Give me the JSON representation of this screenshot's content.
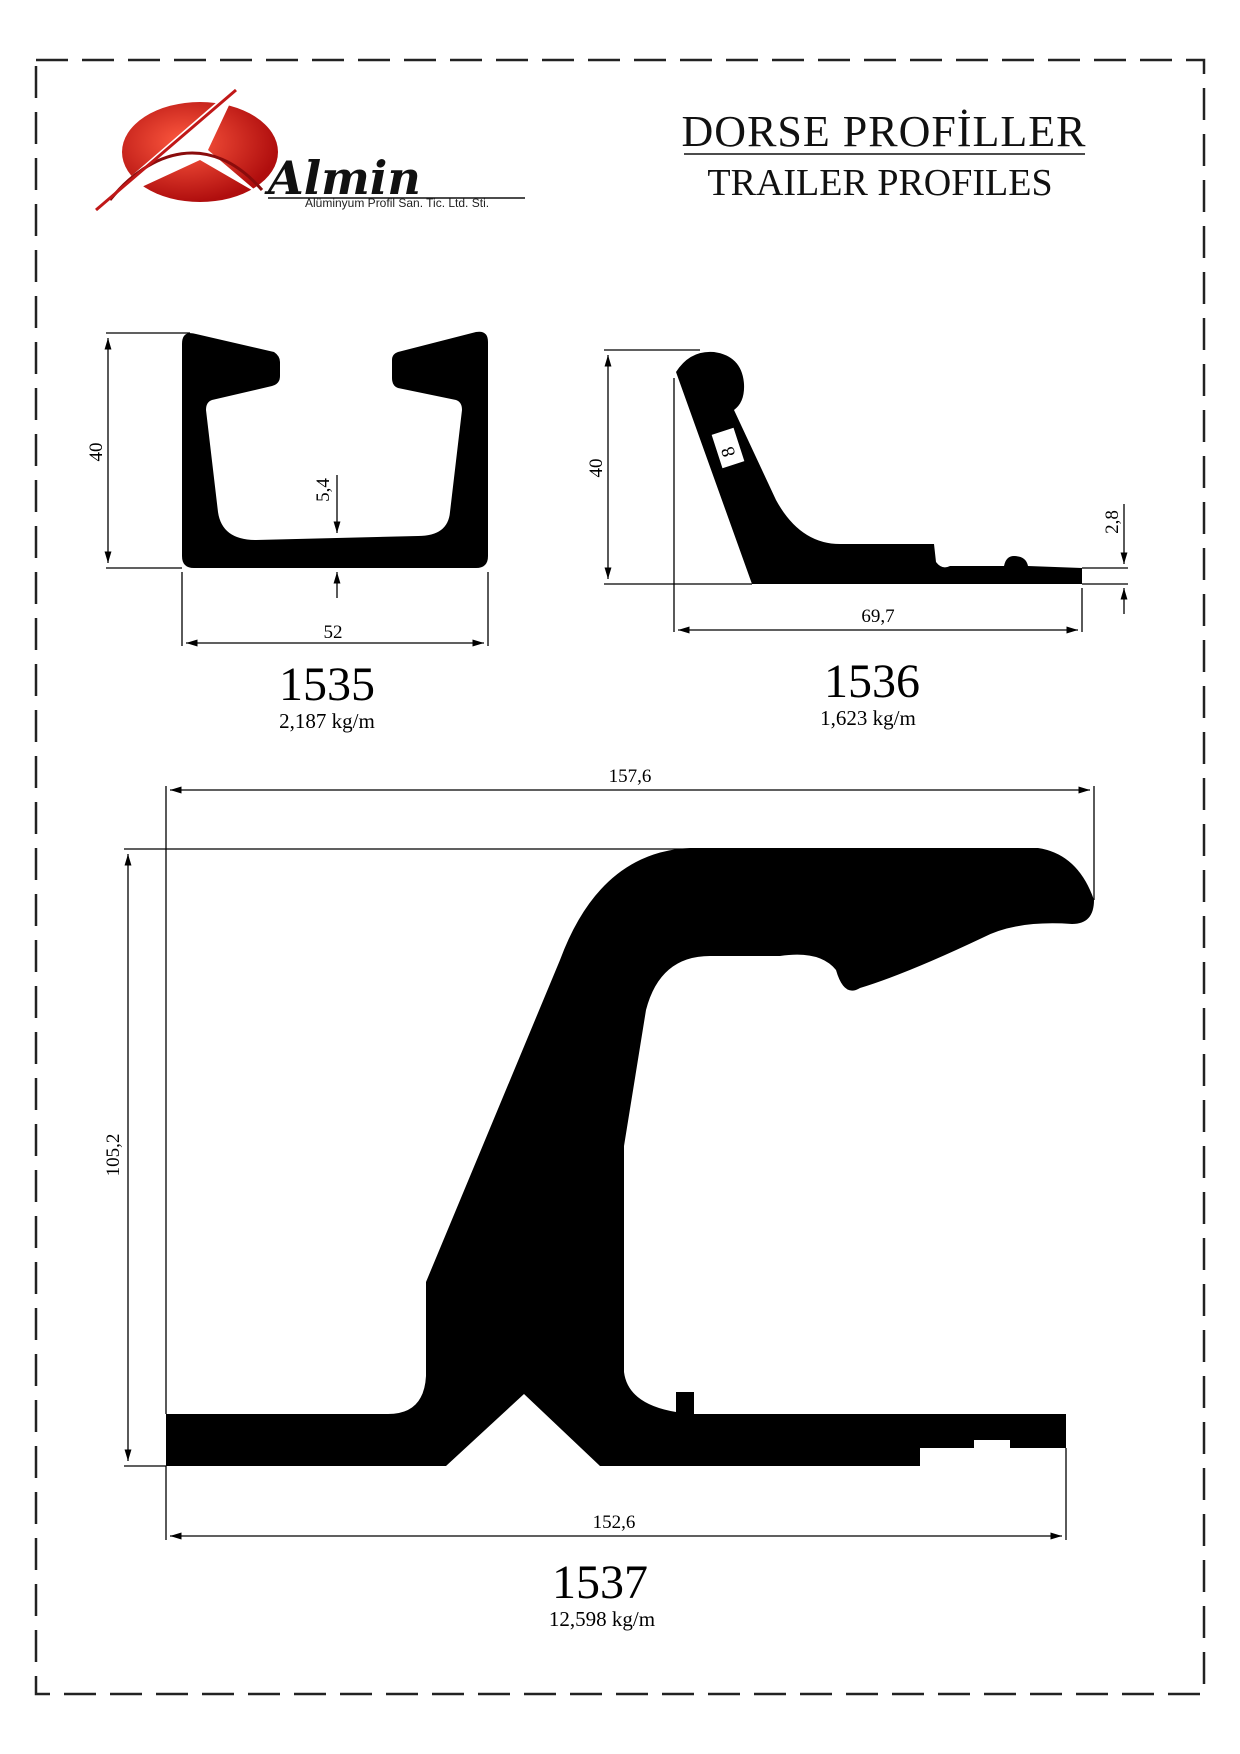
{
  "header": {
    "title": "DORSE  PROFİLLER",
    "subtitle": "TRAILER PROFILES"
  },
  "logo": {
    "name": "Almin",
    "tagline": "Alüminyum Profil San. Tic. Ltd. Sti.",
    "brand_color": "#d42020",
    "icon": "almin-logo-icon"
  },
  "profiles": [
    {
      "code": "1535",
      "weight": "2,187 kg/m",
      "dimensions": {
        "height": "40",
        "width": "52",
        "inner": "5,4"
      }
    },
    {
      "code": "1536",
      "weight": "1,623 kg/m",
      "dimensions": {
        "height": "40",
        "width": "69,7",
        "thickness": "2,8",
        "arm": "8"
      }
    },
    {
      "code": "1537",
      "weight": "12,598 kg/m",
      "dimensions": {
        "height": "105,2",
        "top_width": "157,6",
        "bottom_width": "152,6"
      }
    }
  ],
  "colors": {
    "profile_fill": "#000000",
    "border": "#222222"
  }
}
